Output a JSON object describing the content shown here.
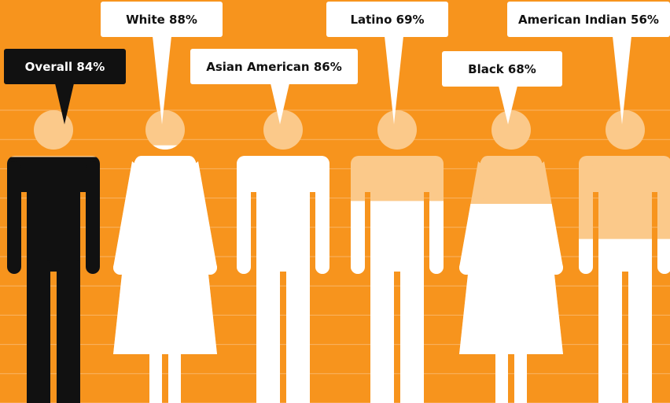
{
  "chart_data": {
    "type": "pictogram",
    "values": [
      84,
      88,
      86,
      69,
      68,
      56
    ],
    "value_labels": [
      "Overall 84%",
      "White 88%",
      "Asian American 86%",
      "Latino 69%",
      "Black 68%",
      "American Indian 56%"
    ],
    "colors": [
      "#111111",
      "#ffffff",
      "#ffffff",
      "#ffffff",
      "#ffffff",
      "#ffffff"
    ],
    "empty_color": "#fbc98a",
    "background": "#f7941d",
    "ylim": [
      0,
      100
    ],
    "yticks": [
      0,
      10,
      20,
      30,
      40,
      50,
      60,
      70,
      80,
      90,
      100
    ],
    "grid": true
  }
}
